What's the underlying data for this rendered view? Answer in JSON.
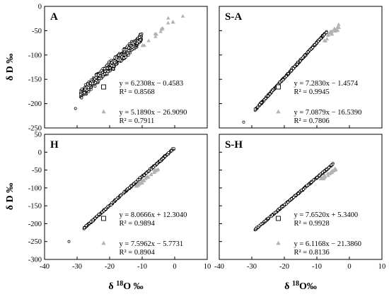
{
  "figure": {
    "y_axis_label": "δ D ‰",
    "x_axis_labels": [
      "δ 18O ‰",
      "δ 18O‰"
    ]
  },
  "chart_data": [
    {
      "type": "scatter",
      "panel": "A",
      "xlim": [
        -40,
        10
      ],
      "ylim": [
        -250,
        0
      ],
      "xticks": [
        -40,
        -30,
        -20,
        -10,
        0,
        10
      ],
      "yticks": [
        0,
        -50,
        -100,
        -150,
        -200,
        -250
      ],
      "x_tick_labels_shown": false,
      "y_tick_labels_shown": true,
      "series": [
        {
          "marker": "open-circle",
          "color": "#000000",
          "slope": 6.2308,
          "intercept": -0.4583,
          "x_range": [
            -29,
            -10
          ],
          "spread": 14,
          "count": 700,
          "extra": [
            [
              -30.5,
              -210
            ]
          ]
        },
        {
          "marker": "triangle",
          "color": "#b3b3b3",
          "slope": 5.189,
          "intercept": -26.909,
          "x_range": [
            -10,
            0
          ],
          "spread": 10,
          "count": 14,
          "extra": [
            [
              2.5,
              -20
            ],
            [
              -2,
              -24
            ]
          ]
        }
      ],
      "legend": {
        "placement": "bottom-right",
        "entries": [
          {
            "marker": "open-square",
            "line1": "y = 6.2308x − 0.4583",
            "line2": "R² = 0.8568"
          },
          {
            "marker": "triangle",
            "line1": "y = 5.1890x − 26.9090",
            "line2": "R² = 0.7911"
          }
        ]
      }
    },
    {
      "type": "scatter",
      "panel": "S-A",
      "xlim": [
        -40,
        10
      ],
      "ylim": [
        -250,
        0
      ],
      "xticks": [
        -40,
        -30,
        -20,
        -10,
        0,
        10
      ],
      "yticks": [
        0,
        -50,
        -100,
        -150,
        -200,
        -250
      ],
      "x_tick_labels_shown": false,
      "y_tick_labels_shown": false,
      "series": [
        {
          "marker": "open-circle",
          "color": "#000000",
          "slope": 7.283,
          "intercept": -1.4574,
          "x_range": [
            -29,
            -7
          ],
          "spread": 3,
          "count": 400,
          "extra": [
            [
              -32.5,
              -238
            ]
          ]
        },
        {
          "marker": "triangle",
          "color": "#b3b3b3",
          "slope": 7.0879,
          "intercept": -16.539,
          "x_range": [
            -8,
            -3
          ],
          "spread": 10,
          "count": 20,
          "extra": []
        }
      ],
      "legend": {
        "placement": "bottom-right",
        "entries": [
          {
            "marker": "open-square",
            "line1": "y = 7.2830x − 1.4574",
            "line2": "R² = 0.9945"
          },
          {
            "marker": "triangle",
            "line1": "y = 7.0879x − 16.5390",
            "line2": "R² = 0.7806"
          }
        ]
      }
    },
    {
      "type": "scatter",
      "panel": "H",
      "xlim": [
        -40,
        10
      ],
      "ylim": [
        -300,
        50
      ],
      "xticks": [
        -40,
        -30,
        -20,
        -10,
        0,
        10
      ],
      "yticks": [
        50,
        0,
        -50,
        -100,
        -150,
        -200,
        -250,
        -300
      ],
      "x_tick_labels_shown": true,
      "y_tick_labels_shown": true,
      "series": [
        {
          "marker": "open-circle",
          "color": "#000000",
          "slope": 8.0666,
          "intercept": 12.304,
          "x_range": [
            -28,
            0
          ],
          "spread": 3.5,
          "count": 420,
          "extra": [
            [
              -32.5,
              -250
            ]
          ]
        },
        {
          "marker": "triangle",
          "color": "#b3b3b3",
          "slope": 7.5962,
          "intercept": -5.7731,
          "x_range": [
            -12,
            -5
          ],
          "spread": 7,
          "count": 30,
          "extra": []
        }
      ],
      "legend": {
        "placement": "bottom-right",
        "entries": [
          {
            "marker": "open-square",
            "line1": "y = 8.0666x + 12.3040",
            "line2": "R² = 0.9894"
          },
          {
            "marker": "triangle",
            "line1": "y = 7.5962x − 5.7731",
            "line2": "R² = 0.8904"
          }
        ]
      }
    },
    {
      "type": "scatter",
      "panel": "S-H",
      "xlim": [
        -40,
        10
      ],
      "ylim": [
        -300,
        50
      ],
      "xticks": [
        -40,
        -30,
        -20,
        -10,
        0,
        10
      ],
      "yticks": [
        50,
        0,
        -50,
        -100,
        -150,
        -200,
        -250,
        -300
      ],
      "x_tick_labels_shown": true,
      "y_tick_labels_shown": false,
      "series": [
        {
          "marker": "open-circle",
          "color": "#000000",
          "slope": 7.652,
          "intercept": 5.34,
          "x_range": [
            -29,
            -5
          ],
          "spread": 3,
          "count": 350,
          "extra": []
        },
        {
          "marker": "triangle",
          "color": "#b3b3b3",
          "slope": 6.1168,
          "intercept": -21.386,
          "x_range": [
            -9,
            -4
          ],
          "spread": 6,
          "count": 25,
          "extra": []
        }
      ],
      "legend": {
        "placement": "bottom-right",
        "entries": [
          {
            "marker": "open-square",
            "line1": "y = 7.6520x + 5.3400",
            "line2": "R² = 0.9928"
          },
          {
            "marker": "triangle",
            "line1": "y = 6.1168x − 21.3860",
            "line2": "R² = 0.8136"
          }
        ]
      }
    }
  ]
}
